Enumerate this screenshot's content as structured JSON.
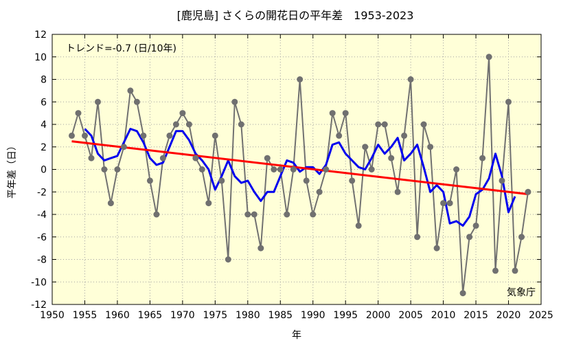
{
  "chart_data": {
    "type": "line",
    "title": "[鹿児島] さくらの開花日の平年差　1953-2023",
    "xlabel": "年",
    "ylabel": "平年差（日）",
    "xlim": [
      1950,
      2025
    ],
    "ylim": [
      -12,
      12
    ],
    "xticks": [
      1950,
      1955,
      1960,
      1965,
      1970,
      1975,
      1980,
      1985,
      1990,
      1995,
      2000,
      2005,
      2010,
      2015,
      2020,
      2025
    ],
    "yticks": [
      -12,
      -10,
      -8,
      -6,
      -4,
      -2,
      0,
      2,
      4,
      6,
      8,
      10,
      12
    ],
    "grid": true,
    "annotations": {
      "trend_label": "トレンド=-0.7 (日/10年)",
      "source": "気象庁"
    },
    "colors": {
      "annual": "#707070",
      "moving_average": "#0000ee",
      "trend": "#ff0000",
      "plot_background": "#ffffd8"
    },
    "series": [
      {
        "x": [
          1953,
          1954,
          1955,
          1956,
          1957,
          1958,
          1959,
          1960,
          1961,
          1962,
          1963,
          1964,
          1965,
          1966,
          1967,
          1968,
          1969,
          1970,
          1971,
          1972,
          1973,
          1974,
          1975,
          1976,
          1977,
          1978,
          1979,
          1980,
          1981,
          1982,
          1983,
          1984,
          1985,
          1986,
          1987,
          1988,
          1989,
          1990,
          1991,
          1992,
          1993,
          1994,
          1995,
          1996,
          1997,
          1998,
          1999,
          2000,
          2001,
          2002,
          2003,
          2004,
          2005,
          2006,
          2007,
          2008,
          2009,
          2010,
          2011,
          2012,
          2013,
          2014,
          2015,
          2016,
          2017,
          2018,
          2019,
          2020,
          2021,
          2022,
          2023
        ],
        "values": [
          3,
          5,
          3,
          1,
          6,
          0,
          -3,
          0,
          2,
          7,
          6,
          3,
          -1,
          -4,
          1,
          3,
          4,
          5,
          4,
          1,
          0,
          -3,
          3,
          -1,
          -8,
          6,
          4,
          -4,
          -4,
          -7,
          1,
          0,
          0,
          -4,
          0,
          8,
          -1,
          -4,
          -2,
          0,
          5,
          3,
          5,
          -1,
          -5,
          2,
          0,
          4,
          4,
          1,
          -2,
          3,
          8,
          -6,
          4,
          2,
          -7,
          -3,
          -3,
          0,
          -11,
          -6,
          -5,
          1,
          10,
          -9,
          -1,
          6,
          -9,
          -6,
          -2
        ]
      },
      {
        "x": [
          1955,
          1956,
          1957,
          1958,
          1959,
          1960,
          1961,
          1962,
          1963,
          1964,
          1965,
          1966,
          1967,
          1968,
          1969,
          1970,
          1971,
          1972,
          1973,
          1974,
          1975,
          1976,
          1977,
          1978,
          1979,
          1980,
          1981,
          1982,
          1983,
          1984,
          1985,
          1986,
          1987,
          1988,
          1989,
          1990,
          1991,
          1992,
          1993,
          1994,
          1995,
          1996,
          1997,
          1998,
          1999,
          2000,
          2001,
          2002,
          2003,
          2004,
          2005,
          2006,
          2007,
          2008,
          2009,
          2010,
          2011,
          2012,
          2013,
          2014,
          2015,
          2016,
          2017,
          2018,
          2019,
          2020,
          2021
        ],
        "values": [
          3.6,
          3.0,
          1.4,
          0.8,
          1.0,
          1.2,
          2.4,
          3.6,
          3.4,
          2.4,
          1.0,
          0.4,
          0.6,
          2.0,
          3.4,
          3.4,
          2.6,
          1.4,
          0.8,
          0.0,
          -1.8,
          -0.6,
          0.8,
          -0.6,
          -1.2,
          -1.0,
          -2.0,
          -2.8,
          -2.0,
          -2.0,
          -0.6,
          0.8,
          0.6,
          -0.2,
          0.2,
          0.2,
          -0.4,
          0.4,
          2.2,
          2.4,
          1.4,
          0.8,
          0.2,
          0.0,
          1.0,
          2.2,
          1.4,
          2.0,
          2.8,
          0.8,
          1.4,
          2.2,
          0.2,
          -2.0,
          -1.4,
          -2.0,
          -4.8,
          -4.6,
          -5.0,
          -4.2,
          -2.2,
          -1.8,
          -0.8,
          1.4,
          -0.6,
          -3.8,
          -2.4
        ]
      },
      {
        "x": [
          1953,
          2023
        ],
        "values": [
          2.5,
          -2.2
        ]
      }
    ]
  }
}
